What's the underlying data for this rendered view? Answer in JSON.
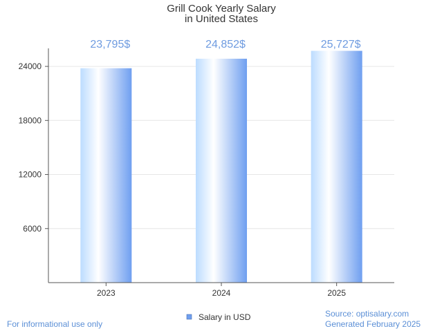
{
  "chart_data": {
    "type": "bar",
    "title": [
      "Grill Cook Yearly Salary",
      "in United States"
    ],
    "categories": [
      "2023",
      "2024",
      "2025"
    ],
    "series": [
      {
        "name": "Salary in USD",
        "values": [
          23795,
          24852,
          25727
        ]
      }
    ],
    "data_labels": [
      "23,795$",
      "24,852$",
      "25,727$"
    ],
    "y_ticks": [
      6000,
      12000,
      18000,
      24000
    ],
    "ylim": [
      0,
      26000
    ],
    "xlabel": "",
    "ylabel": "",
    "grid": true,
    "legend": "bottom-center"
  },
  "colors": {
    "bar_light": "#ffffff",
    "bar_mid": "#bcdcff",
    "bar_dark": "#6f9ff0",
    "label": "#6e9be0",
    "grid": "#e6e6e6",
    "axis": "#555555",
    "footer": "#5b8fd6"
  },
  "footer": {
    "disclaimer": "For informational use only",
    "source": "Source: optisalary.com",
    "generated": "Generated February 2025"
  }
}
